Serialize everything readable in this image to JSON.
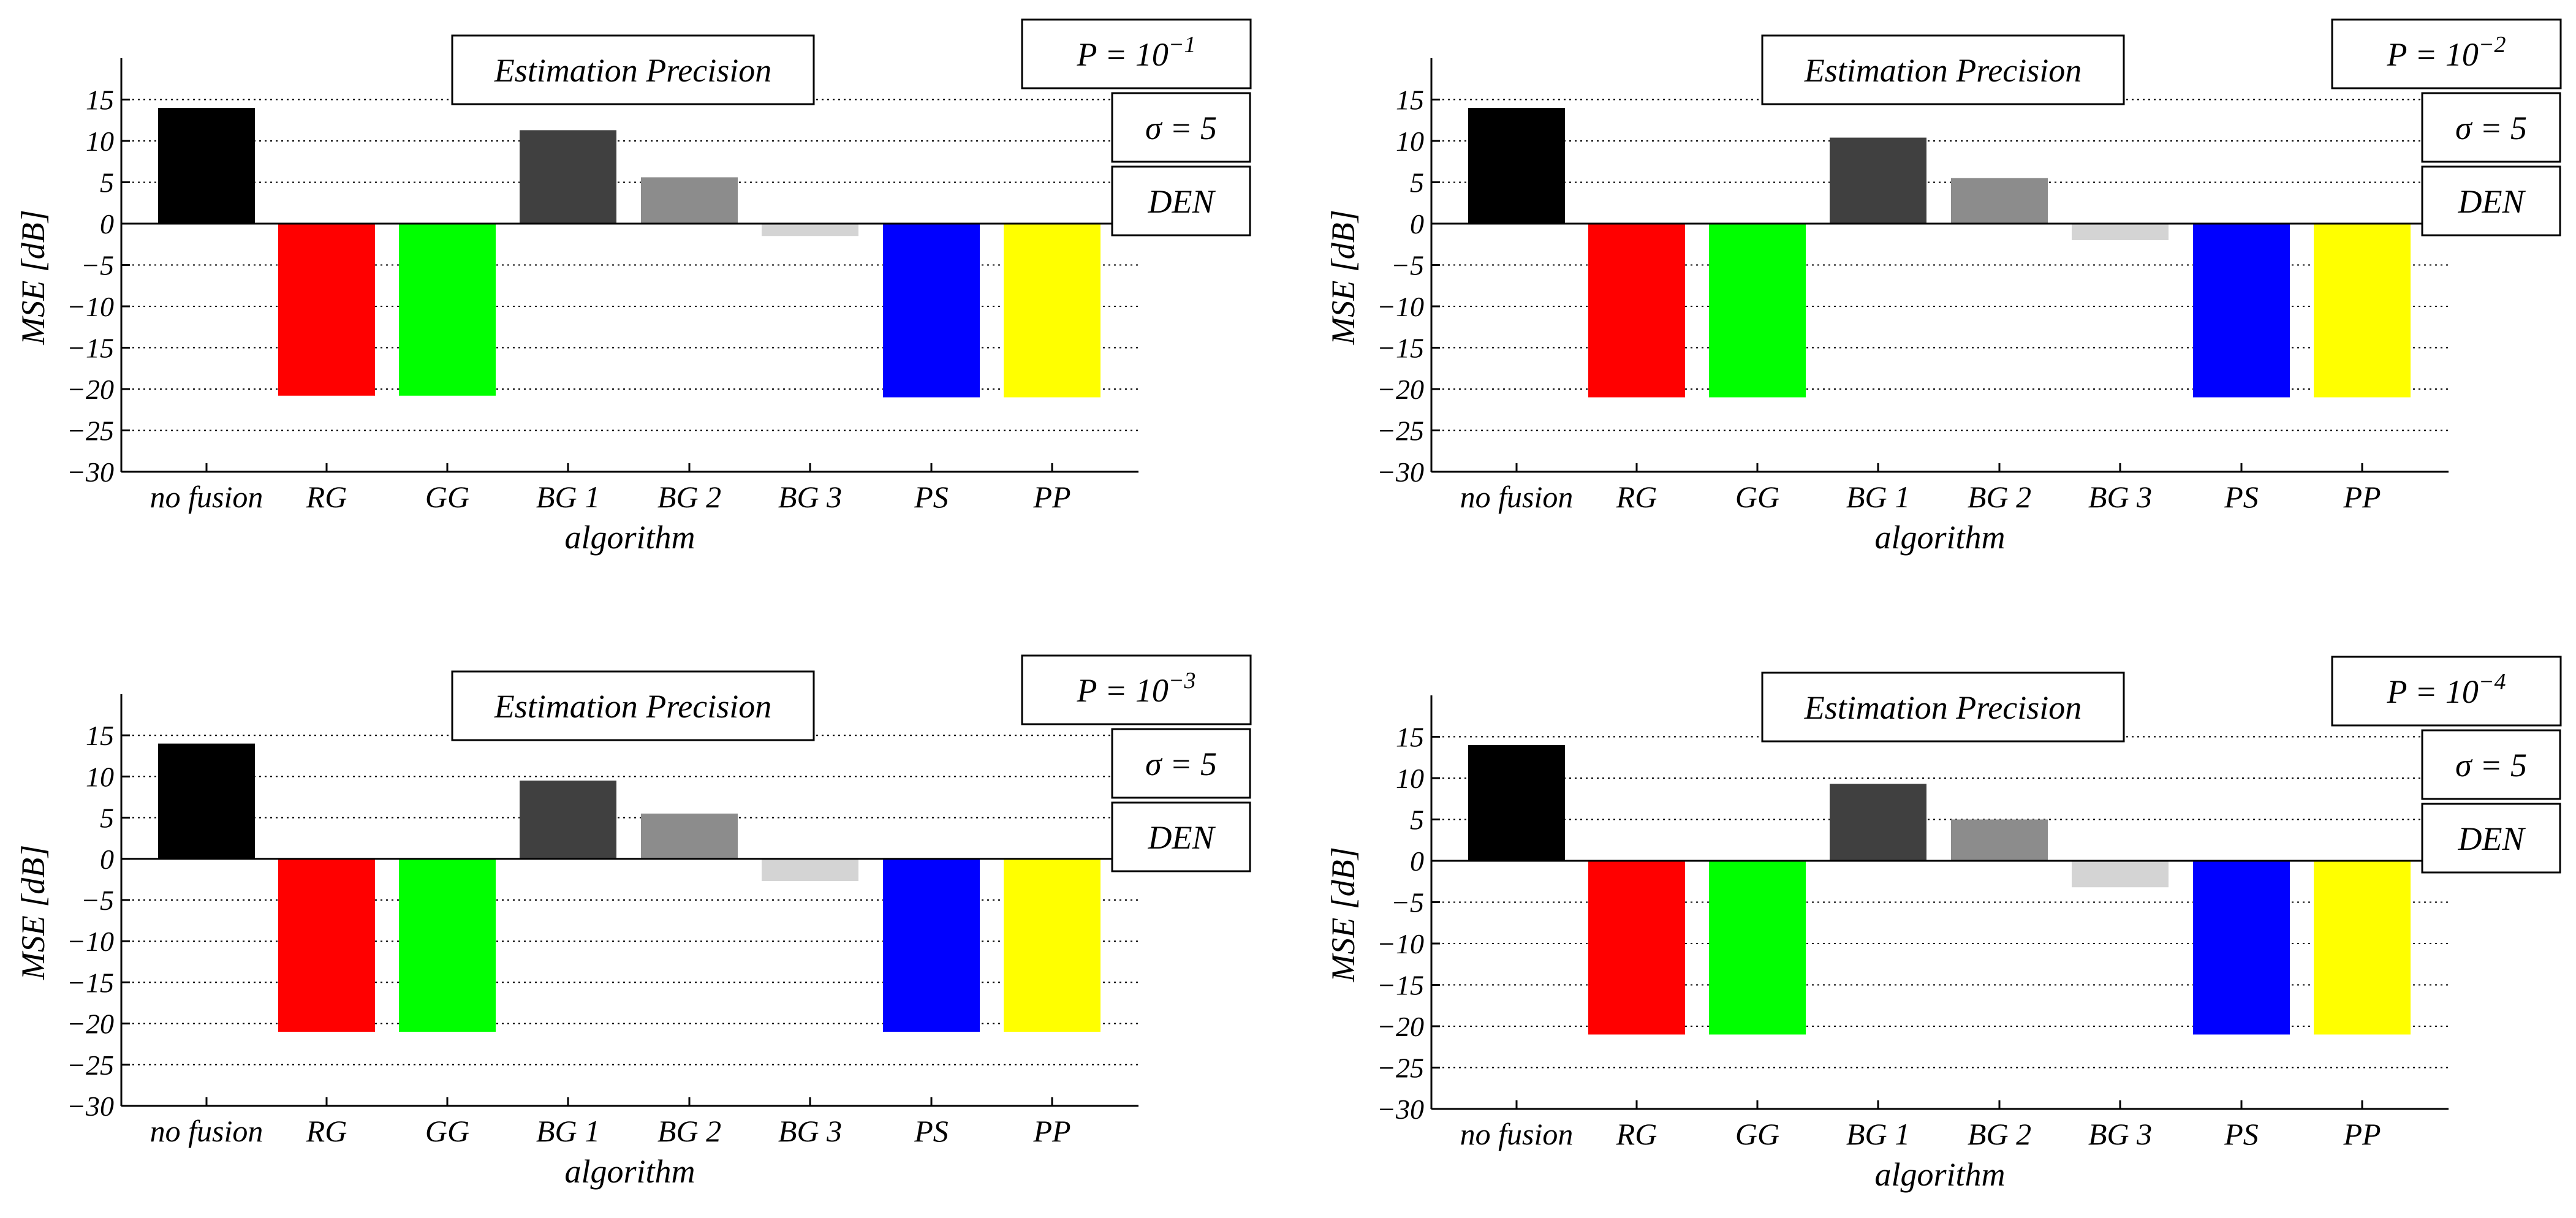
{
  "chart_data": [
    {
      "type": "bar",
      "title": "Estimation Precision",
      "xlabel": "algorithm",
      "ylabel": "MSE [dB]",
      "ylim": [
        -30,
        20
      ],
      "yticks": [
        15,
        10,
        5,
        0,
        -5,
        -10,
        -15,
        -20,
        -25,
        -30
      ],
      "ytick_labels": [
        "15",
        "10",
        "5",
        "0",
        "−5",
        "−10",
        "−15",
        "−20",
        "−25",
        "−30"
      ],
      "grid": "horizontal dotted",
      "categories": [
        "no fusion",
        "RG",
        "GG",
        "BG 1",
        "BG 2",
        "BG 3",
        "PS",
        "PP"
      ],
      "values": [
        14,
        -20.8,
        -20.8,
        11.3,
        5.6,
        -1.5,
        -21,
        -21
      ],
      "annotations": [
        {
          "prefix": "P = 10",
          "sup": "−1"
        },
        {
          "prefix": "σ = 5",
          "sup": ""
        },
        {
          "prefix": "DEN",
          "sup": ""
        }
      ]
    },
    {
      "type": "bar",
      "title": "Estimation Precision",
      "xlabel": "algorithm",
      "ylabel": "MSE [dB]",
      "ylim": [
        -30,
        20
      ],
      "yticks": [
        15,
        10,
        5,
        0,
        -5,
        -10,
        -15,
        -20,
        -25,
        -30
      ],
      "ytick_labels": [
        "15",
        "10",
        "5",
        "0",
        "−5",
        "−10",
        "−15",
        "−20",
        "−25",
        "−30"
      ],
      "grid": "horizontal dotted",
      "categories": [
        "no fusion",
        "RG",
        "GG",
        "BG 1",
        "BG 2",
        "BG 3",
        "PS",
        "PP"
      ],
      "values": [
        14,
        -21,
        -21,
        10.4,
        5.5,
        -2,
        -21,
        -21
      ],
      "annotations": [
        {
          "prefix": "P = 10",
          "sup": "−2"
        },
        {
          "prefix": "σ = 5",
          "sup": ""
        },
        {
          "prefix": "DEN",
          "sup": ""
        }
      ]
    },
    {
      "type": "bar",
      "title": "Estimation Precision",
      "xlabel": "algorithm",
      "ylabel": "MSE [dB]",
      "ylim": [
        -30,
        20
      ],
      "yticks": [
        15,
        10,
        5,
        0,
        -5,
        -10,
        -15,
        -20,
        -25,
        -30
      ],
      "ytick_labels": [
        "15",
        "10",
        "5",
        "0",
        "−5",
        "−10",
        "−15",
        "−20",
        "−25",
        "−30"
      ],
      "grid": "horizontal dotted",
      "categories": [
        "no fusion",
        "RG",
        "GG",
        "BG 1",
        "BG 2",
        "BG 3",
        "PS",
        "PP"
      ],
      "values": [
        14,
        -21,
        -21,
        9.5,
        5.5,
        -2.7,
        -21,
        -21
      ],
      "annotations": [
        {
          "prefix": "P = 10",
          "sup": "−3"
        },
        {
          "prefix": "σ = 5",
          "sup": ""
        },
        {
          "prefix": "DEN",
          "sup": ""
        }
      ]
    },
    {
      "type": "bar",
      "title": "Estimation Precision",
      "xlabel": "algorithm",
      "ylabel": "MSE [dB]",
      "ylim": [
        -30,
        20
      ],
      "yticks": [
        15,
        10,
        5,
        0,
        -5,
        -10,
        -15,
        -20,
        -25,
        -30
      ],
      "ytick_labels": [
        "15",
        "10",
        "5",
        "0",
        "−5",
        "−10",
        "−15",
        "−20",
        "−25",
        "−30"
      ],
      "grid": "horizontal dotted",
      "categories": [
        "no fusion",
        "RG",
        "GG",
        "BG 1",
        "BG 2",
        "BG 3",
        "PS",
        "PP"
      ],
      "values": [
        14,
        -21,
        -21,
        9.3,
        5,
        -3.2,
        -21,
        -21
      ],
      "annotations": [
        {
          "prefix": "P = 10",
          "sup": "−4"
        },
        {
          "prefix": "σ = 5",
          "sup": ""
        },
        {
          "prefix": "DEN",
          "sup": ""
        }
      ]
    }
  ],
  "colors": {
    "bars": [
      "#000000",
      "#ff0000",
      "#00ff00",
      "#404040",
      "#8c8c8c",
      "#d4d4d4",
      "#0000ff",
      "#ffff00"
    ],
    "axis": "#000000",
    "grid": "#000000",
    "box_border": "#000000",
    "box_fill": "#ffffff"
  }
}
